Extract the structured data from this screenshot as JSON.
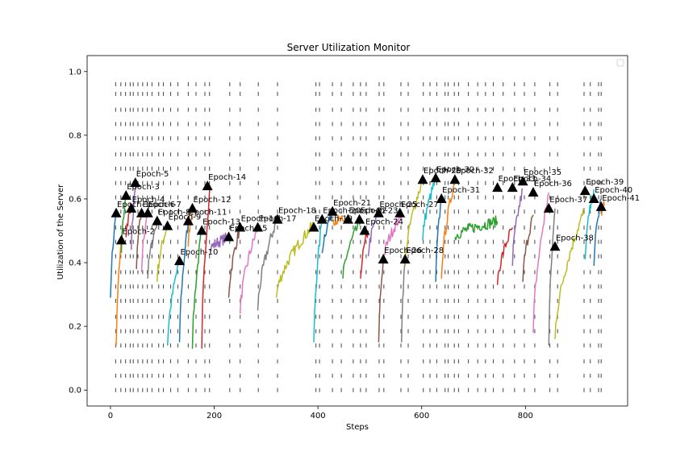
{
  "chart_data": {
    "type": "line",
    "title": "Server Utilization Monitor",
    "xlabel": "Steps",
    "ylabel": "Utilization of the Server",
    "xlim": [
      -45,
      997
    ],
    "ylim": [
      -0.05,
      1.05
    ],
    "xticks": [
      0,
      200,
      400,
      600,
      800
    ],
    "yticks": [
      0.0,
      0.2,
      0.4,
      0.6,
      0.8,
      1.0
    ],
    "legend": "top-right (empty)",
    "grid": false,
    "palette": [
      "#1f77b4",
      "#ff7f0e",
      "#2ca02c",
      "#d62728",
      "#9467bd",
      "#8c564b",
      "#e377c2",
      "#7f7f7f",
      "#bcbd22",
      "#17becf"
    ],
    "marker_rows": [
      0.0,
      0.045,
      0.09,
      0.14,
      0.185,
      0.23,
      0.28,
      0.325,
      0.37,
      0.42,
      0.465,
      0.51,
      0.56,
      0.605,
      0.65,
      0.695,
      0.74,
      0.79,
      0.835,
      0.88,
      0.93,
      0.96
    ],
    "marker_columns": [
      10,
      20,
      29,
      38,
      44,
      53,
      62,
      71,
      80,
      93,
      102,
      116,
      130,
      150,
      165,
      182,
      191,
      230,
      250,
      285,
      322,
      396,
      403,
      428,
      445,
      468,
      482,
      493,
      518,
      527,
      560,
      574,
      603,
      616,
      629,
      645,
      651,
      663,
      671,
      690,
      708,
      723,
      738,
      757,
      779,
      798,
      818,
      847,
      862,
      913,
      925,
      941,
      946
    ],
    "segments": [
      {
        "x0": 0,
        "x1": 11,
        "y0": 0.29,
        "y1": 0.56
      },
      {
        "x0": 11,
        "x1": 21,
        "y0": 0.14,
        "y1": 0.47
      },
      {
        "x0": 21,
        "x1": 30,
        "y0": 0.43,
        "y1": 0.61
      },
      {
        "x0": 30,
        "x1": 40,
        "y0": 0.48,
        "y1": 0.58
      },
      {
        "x0": 40,
        "x1": 50,
        "y0": 0.44,
        "y1": 0.65
      },
      {
        "x0": 50,
        "x1": 60,
        "y0": 0.38,
        "y1": 0.56
      },
      {
        "x0": 60,
        "x1": 72,
        "y0": 0.37,
        "y1": 0.57
      },
      {
        "x0": 72,
        "x1": 90,
        "y0": 0.35,
        "y1": 0.53
      },
      {
        "x0": 90,
        "x1": 110,
        "y0": 0.34,
        "y1": 0.52
      },
      {
        "x0": 110,
        "x1": 133,
        "y0": 0.14,
        "y1": 0.41
      },
      {
        "x0": 133,
        "x1": 150,
        "y0": 0.15,
        "y1": 0.53
      },
      {
        "x0": 150,
        "x1": 158,
        "y0": 0.45,
        "y1": 0.57
      },
      {
        "x0": 158,
        "x1": 176,
        "y0": 0.13,
        "y1": 0.5
      },
      {
        "x0": 176,
        "x1": 192,
        "y0": 0.13,
        "y1": 0.64
      },
      {
        "x0": 192,
        "x1": 228,
        "y0": 0.44,
        "y1": 0.48
      },
      {
        "x0": 228,
        "x1": 250,
        "y0": 0.29,
        "y1": 0.51
      },
      {
        "x0": 250,
        "x1": 284,
        "y0": 0.24,
        "y1": 0.51
      },
      {
        "x0": 284,
        "x1": 320,
        "y0": 0.25,
        "y1": 0.53
      },
      {
        "x0": 320,
        "x1": 392,
        "y0": 0.29,
        "y1": 0.52
      },
      {
        "x0": 392,
        "x1": 408,
        "y0": 0.15,
        "y1": 0.54
      },
      {
        "x0": 408,
        "x1": 428,
        "y0": 0.43,
        "y1": 0.56
      },
      {
        "x0": 428,
        "x1": 448,
        "y0": 0.54,
        "y1": 0.53
      },
      {
        "x0": 448,
        "x1": 482,
        "y0": 0.35,
        "y1": 0.53
      },
      {
        "x0": 482,
        "x1": 497,
        "y0": 0.35,
        "y1": 0.5
      },
      {
        "x0": 497,
        "x1": 517,
        "y0": 0.42,
        "y1": 0.56
      },
      {
        "x0": 517,
        "x1": 526,
        "y0": 0.15,
        "y1": 0.41
      },
      {
        "x0": 526,
        "x1": 561,
        "y0": 0.4,
        "y1": 0.55
      },
      {
        "x0": 561,
        "x1": 568,
        "y0": 0.15,
        "y1": 0.41
      },
      {
        "x0": 568,
        "x1": 602,
        "y0": 0.39,
        "y1": 0.66
      },
      {
        "x0": 602,
        "x1": 627,
        "y0": 0.47,
        "y1": 0.66
      },
      {
        "x0": 627,
        "x1": 638,
        "y0": 0.34,
        "y1": 0.6
      },
      {
        "x0": 638,
        "x1": 664,
        "y0": 0.35,
        "y1": 0.66
      },
      {
        "x0": 664,
        "x1": 746,
        "y0": 0.48,
        "y1": 0.53
      },
      {
        "x0": 746,
        "x1": 775,
        "y0": 0.33,
        "y1": 0.51
      },
      {
        "x0": 775,
        "x1": 795,
        "y0": 0.39,
        "y1": 0.63
      },
      {
        "x0": 795,
        "x1": 815,
        "y0": 0.34,
        "y1": 0.55
      },
      {
        "x0": 815,
        "x1": 845,
        "y0": 0.18,
        "y1": 0.62
      },
      {
        "x0": 845,
        "x1": 857,
        "y0": 0.14,
        "y1": 0.57
      },
      {
        "x0": 857,
        "x1": 915,
        "y0": 0.16,
        "y1": 0.57
      },
      {
        "x0": 915,
        "x1": 932,
        "y0": 0.41,
        "y1": 0.63
      },
      {
        "x0": 932,
        "x1": 946,
        "y0": 0.39,
        "y1": 0.6
      },
      {
        "x0": 946,
        "x1": 952,
        "y0": 0.55,
        "y1": 0.58
      }
    ],
    "annotations": [
      {
        "label": "Epoch-1",
        "x": 11,
        "y": 0.555
      },
      {
        "label": "Epoch-2",
        "x": 21,
        "y": 0.47
      },
      {
        "label": "Epoch-3",
        "x": 30,
        "y": 0.61
      },
      {
        "label": "Epoch-4",
        "x": 40,
        "y": 0.57
      },
      {
        "label": "Epoch-5",
        "x": 48,
        "y": 0.65
      },
      {
        "label": "Epoch-6",
        "x": 60,
        "y": 0.555
      },
      {
        "label": "Epoch-7",
        "x": 72,
        "y": 0.555
      },
      {
        "label": "Epoch-8",
        "x": 90,
        "y": 0.53
      },
      {
        "label": "Epoch-9",
        "x": 110,
        "y": 0.515
      },
      {
        "label": "Epoch-10",
        "x": 133,
        "y": 0.405
      },
      {
        "label": "Epoch-11",
        "x": 150,
        "y": 0.53
      },
      {
        "label": "Epoch-12",
        "x": 158,
        "y": 0.57
      },
      {
        "label": "Epoch-13",
        "x": 176,
        "y": 0.5
      },
      {
        "label": "Epoch-14",
        "x": 187,
        "y": 0.64
      },
      {
        "label": "Epoch-15",
        "x": 228,
        "y": 0.48
      },
      {
        "label": "Epoch-16",
        "x": 250,
        "y": 0.51
      },
      {
        "label": "Epoch-17",
        "x": 284,
        "y": 0.51
      },
      {
        "label": "Epoch-18",
        "x": 322,
        "y": 0.535
      },
      {
        "label": "Epoch-19",
        "x": 392,
        "y": 0.51
      },
      {
        "label": "Epoch-20",
        "x": 408,
        "y": 0.535
      },
      {
        "label": "Epoch-21",
        "x": 428,
        "y": 0.56
      },
      {
        "label": "Epoch-22",
        "x": 458,
        "y": 0.535
      },
      {
        "label": "Epoch-23",
        "x": 480,
        "y": 0.535
      },
      {
        "label": "Epoch-24",
        "x": 490,
        "y": 0.5
      },
      {
        "label": "Epoch-25",
        "x": 517,
        "y": 0.555
      },
      {
        "label": "Epoch-26",
        "x": 526,
        "y": 0.41
      },
      {
        "label": "Epoch-27",
        "x": 558,
        "y": 0.555
      },
      {
        "label": "Epoch-28",
        "x": 568,
        "y": 0.41
      },
      {
        "label": "Epoch-29",
        "x": 602,
        "y": 0.66
      },
      {
        "label": "Epoch-30",
        "x": 627,
        "y": 0.665
      },
      {
        "label": "Epoch-31",
        "x": 638,
        "y": 0.6
      },
      {
        "label": "Epoch-32",
        "x": 664,
        "y": 0.66
      },
      {
        "label": "Epoch-33",
        "x": 746,
        "y": 0.635
      },
      {
        "label": "Epoch-34",
        "x": 775,
        "y": 0.635
      },
      {
        "label": "Epoch-35",
        "x": 795,
        "y": 0.655
      },
      {
        "label": "Epoch-36",
        "x": 815,
        "y": 0.62
      },
      {
        "label": "Epoch-37",
        "x": 845,
        "y": 0.57
      },
      {
        "label": "Epoch-38",
        "x": 857,
        "y": 0.45
      },
      {
        "label": "Epoch-39",
        "x": 915,
        "y": 0.625
      },
      {
        "label": "Epoch-40",
        "x": 932,
        "y": 0.6
      },
      {
        "label": "Epoch-41",
        "x": 946,
        "y": 0.575
      }
    ]
  }
}
